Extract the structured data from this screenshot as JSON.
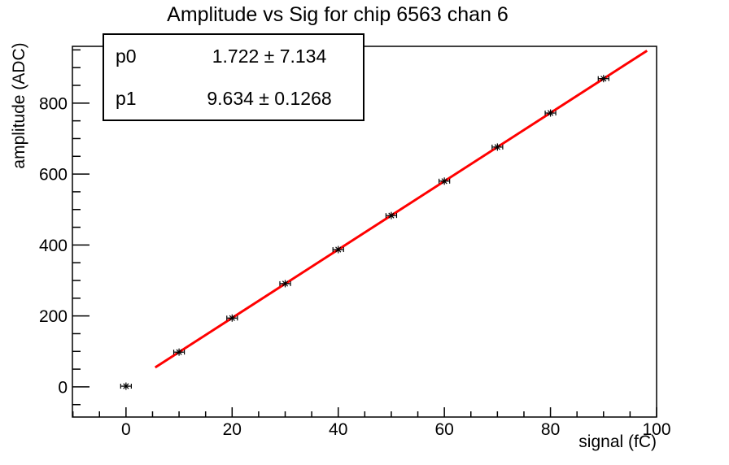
{
  "title": "Amplitude vs Sig for chip 6563 chan 6",
  "stats_box": {
    "rows": [
      {
        "label": "p0",
        "value": "1.722 ± 7.134"
      },
      {
        "label": "p1",
        "value": "9.634 ± 0.1268"
      }
    ]
  },
  "chart_data": {
    "type": "scatter",
    "title": "Amplitude vs Sig for chip 6563 chan 6",
    "xlabel": "signal (fC)",
    "ylabel": "amplitude (ADC)",
    "xlim": [
      -10.1,
      100
    ],
    "ylim": [
      -85,
      960
    ],
    "x_major_ticks": [
      0,
      20,
      40,
      60,
      80,
      100
    ],
    "x_minor_step": 5,
    "y_major_ticks": [
      0,
      200,
      400,
      600,
      800
    ],
    "y_minor_step": 50,
    "grid": false,
    "legend": "none",
    "axis_color": "#000000",
    "background_color": "#ffffff",
    "marker": {
      "style": "asterisk-with-xerr-bars",
      "color": "#000000"
    },
    "points": {
      "x": [
        0,
        10,
        20,
        30,
        40,
        50,
        60,
        70,
        80,
        90
      ],
      "y": [
        2,
        98,
        194,
        291,
        387,
        483,
        580,
        676,
        772,
        869
      ],
      "xerr": 1
    },
    "fit": {
      "p0": 1.722,
      "p0_err": 7.134,
      "p1": 9.634,
      "p1_err": 0.1268,
      "range": [
        5.5,
        98.2
      ],
      "color": "#ff0000",
      "line_width": 3
    }
  }
}
